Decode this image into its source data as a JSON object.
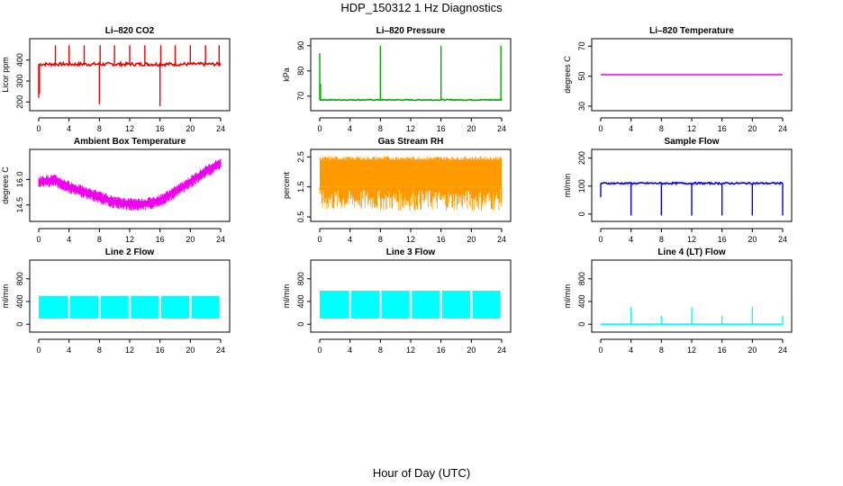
{
  "title": "HDP_150312  1 Hz Diagnostics",
  "xlabel": "Hour of Day (UTC)",
  "chart_data": [
    {
      "type": "line",
      "title": "Li–820 CO2",
      "ylabel": "Licor ppm",
      "color": "#ee0000",
      "xlim": [
        0,
        24
      ],
      "ylim": [
        180,
        480
      ],
      "yticks": [
        200,
        300,
        400
      ],
      "ytick_labels": [
        "200",
        "300",
        "400"
      ],
      "xticks": [
        0,
        4,
        8,
        12,
        16,
        20,
        24
      ],
      "xtick_labels": [
        "0",
        "4",
        "8",
        "12",
        "16",
        "20",
        "24"
      ],
      "baseline": 380,
      "noise": 8,
      "spikes": [
        [
          0,
          220
        ],
        [
          0.1,
          240
        ],
        [
          2.2,
          470
        ],
        [
          4,
          470
        ],
        [
          6,
          470
        ],
        [
          8,
          190
        ],
        [
          8.1,
          470
        ],
        [
          10,
          470
        ],
        [
          12,
          470
        ],
        [
          14,
          470
        ],
        [
          16,
          180
        ],
        [
          16.1,
          470
        ],
        [
          18,
          470
        ],
        [
          20,
          470
        ],
        [
          22,
          470
        ],
        [
          23.8,
          470
        ]
      ]
    },
    {
      "type": "line",
      "title": "Li–820 Pressure",
      "ylabel": "kPa",
      "color": "#00aa00",
      "xlim": [
        0,
        24
      ],
      "ylim": [
        66,
        91
      ],
      "yticks": [
        70,
        80,
        90
      ],
      "ytick_labels": [
        "70",
        "80",
        "90"
      ],
      "xticks": [
        0,
        4,
        8,
        12,
        16,
        20,
        24
      ],
      "xtick_labels": [
        "0",
        "4",
        "8",
        "12",
        "16",
        "20",
        "24"
      ],
      "baseline": 68.5,
      "noise": 0.2,
      "spikes": [
        [
          0,
          87
        ],
        [
          0.1,
          75
        ],
        [
          8,
          90
        ],
        [
          16,
          90
        ],
        [
          23.9,
          90
        ]
      ]
    },
    {
      "type": "line",
      "title": "Li–820 Temperature",
      "ylabel": "degrees C",
      "color": "#ee00ee",
      "xlim": [
        0,
        24
      ],
      "ylim": [
        30,
        72
      ],
      "yticks": [
        30,
        50,
        70
      ],
      "ytick_labels": [
        "30",
        "50",
        "70"
      ],
      "xticks": [
        0,
        4,
        8,
        12,
        16,
        20,
        24
      ],
      "xtick_labels": [
        "0",
        "4",
        "8",
        "12",
        "16",
        "20",
        "24"
      ],
      "baseline": 51,
      "noise": 0,
      "spikes": []
    },
    {
      "type": "line",
      "title": "Ambient Box Temperature",
      "ylabel": "degrees C",
      "color": "#ee00ee",
      "xlim": [
        0,
        24
      ],
      "ylim": [
        13.8,
        17.5
      ],
      "yticks": [
        14.5,
        16.0
      ],
      "ytick_labels": [
        "14.5",
        "16.0"
      ],
      "xticks": [
        0,
        4,
        8,
        12,
        16,
        20,
        24
      ],
      "xtick_labels": [
        "0",
        "4",
        "8",
        "12",
        "16",
        "20",
        "24"
      ],
      "trend": [
        [
          0,
          15.9
        ],
        [
          2,
          16.0
        ],
        [
          4,
          15.6
        ],
        [
          6,
          15.3
        ],
        [
          8,
          15.0
        ],
        [
          10,
          14.7
        ],
        [
          12,
          14.6
        ],
        [
          14,
          14.6
        ],
        [
          16,
          14.8
        ],
        [
          18,
          15.3
        ],
        [
          20,
          15.9
        ],
        [
          22,
          16.5
        ],
        [
          24,
          17.0
        ]
      ],
      "noise": 0.35,
      "spikes": []
    },
    {
      "type": "line",
      "title": "Gas Stream RH",
      "ylabel": "percent",
      "color": "#ff9900",
      "xlim": [
        0,
        24
      ],
      "ylim": [
        0.5,
        2.6
      ],
      "yticks": [
        0.5,
        1.5,
        2.5
      ],
      "ytick_labels": [
        "0.5",
        "1.5",
        "2.5"
      ],
      "xticks": [
        0,
        4,
        8,
        12,
        16,
        20,
        24
      ],
      "xtick_labels": [
        "0",
        "4",
        "8",
        "12",
        "16",
        "20",
        "24"
      ],
      "band": [
        1.5,
        2.4
      ],
      "dips": [
        0.7,
        1.4
      ],
      "spikes": []
    },
    {
      "type": "line",
      "title": "Sample Flow",
      "ylabel": "ml/min",
      "color": "#0000ee",
      "xlim": [
        0,
        24
      ],
      "ylim": [
        -10,
        215
      ],
      "yticks": [
        0,
        100,
        200
      ],
      "ytick_labels": [
        "0",
        "100",
        "200"
      ],
      "xticks": [
        0,
        4,
        8,
        12,
        16,
        20,
        24
      ],
      "xtick_labels": [
        "0",
        "4",
        "8",
        "12",
        "16",
        "20",
        "24"
      ],
      "baseline": 110,
      "noise": 3,
      "spikes": [
        [
          0,
          60
        ],
        [
          4,
          -5
        ],
        [
          8,
          -5
        ],
        [
          12,
          -5
        ],
        [
          16,
          -5
        ],
        [
          20,
          -5
        ],
        [
          24,
          -5
        ]
      ]
    },
    {
      "type": "line",
      "title": "Line 2 Flow",
      "ylabel": "ml/min",
      "color": "#00ffff",
      "xlim": [
        0,
        24
      ],
      "ylim": [
        -60,
        1050
      ],
      "yticks": [
        0,
        400,
        800
      ],
      "ytick_labels": [
        "0",
        "400",
        "800"
      ],
      "xticks": [
        0,
        4,
        8,
        12,
        16,
        20,
        24
      ],
      "xtick_labels": [
        "0",
        "4",
        "8",
        "12",
        "16",
        "20",
        "24"
      ],
      "band": [
        100,
        500
      ],
      "gaps": [
        4,
        8,
        12,
        16,
        20
      ],
      "end": 24
    },
    {
      "type": "line",
      "title": "Line 3 Flow",
      "ylabel": "ml/min",
      "color": "#00ffff",
      "xlim": [
        0,
        24
      ],
      "ylim": [
        -60,
        1050
      ],
      "yticks": [
        0,
        400,
        800
      ],
      "ytick_labels": [
        "0",
        "400",
        "800"
      ],
      "xticks": [
        0,
        4,
        8,
        12,
        16,
        20,
        24
      ],
      "xtick_labels": [
        "0",
        "4",
        "8",
        "12",
        "16",
        "20",
        "24"
      ],
      "band": [
        100,
        590
      ],
      "gaps": [
        4,
        8,
        12,
        16,
        20
      ],
      "end": 24
    },
    {
      "type": "line",
      "title": "Line 4 (LT) Flow",
      "ylabel": "ml/min",
      "color": "#00ffff",
      "xlim": [
        0,
        24
      ],
      "ylim": [
        -60,
        1050
      ],
      "yticks": [
        0,
        400,
        800
      ],
      "ytick_labels": [
        "0",
        "400",
        "800"
      ],
      "xticks": [
        0,
        4,
        8,
        12,
        16,
        20,
        24
      ],
      "xtick_labels": [
        "0",
        "4",
        "8",
        "12",
        "16",
        "20",
        "24"
      ],
      "baseline": 0,
      "noise": 0,
      "spikes": [
        [
          4,
          300
        ],
        [
          8,
          150
        ],
        [
          12,
          300
        ],
        [
          16,
          150
        ],
        [
          20,
          300
        ],
        [
          24,
          150
        ]
      ]
    }
  ]
}
